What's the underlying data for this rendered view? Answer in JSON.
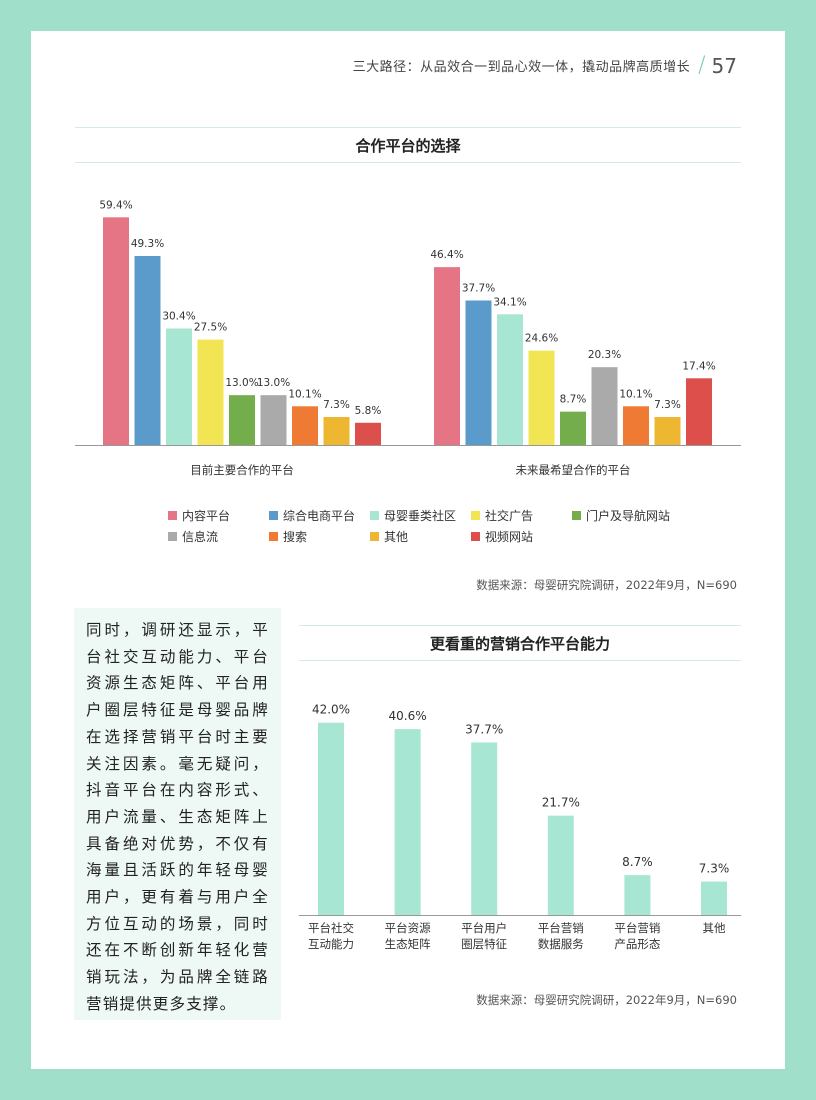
{
  "header": {
    "title": "三大路径：从品效合一到品心效一体，撬动品牌高质增长",
    "page_number": "57"
  },
  "chart1": {
    "title": "合作平台的选择",
    "source": "数据来源：母婴研究院调研，2022年9月，N=690"
  },
  "chart2": {
    "title": "更看重的营销合作平台能力",
    "source": "数据来源：母婴研究院调研，2022年9月，N=690"
  },
  "body_text": "同时，调研还显示，平台社交互动能力、平台资源生态矩阵、平台用户圈层特征是母婴品牌在选择营销平台时主要关注因素。毫无疑问，抖音平台在内容形式、用户流量、生态矩阵上具备绝对优势，不仅有海量且活跃的年轻母婴用户，更有着与用户全方位互动的场景，同时还在不断创新年轻化营销玩法，为品牌全链路营销提供更多支撑。",
  "chart_data": [
    {
      "type": "bar",
      "title": "合作平台的选择",
      "categories": [
        "目前主要合作的平台",
        "未来最希望合作的平台"
      ],
      "series": [
        {
          "name": "内容平台",
          "color": "#e57585",
          "values": [
            59.4,
            46.4
          ]
        },
        {
          "name": "综合电商平台",
          "color": "#5b9bcb",
          "values": [
            49.3,
            37.7
          ]
        },
        {
          "name": "母婴垂类社区",
          "color": "#a6e6d2",
          "values": [
            30.4,
            34.1
          ]
        },
        {
          "name": "社交广告",
          "color": "#f1e554",
          "values": [
            27.5,
            24.6
          ]
        },
        {
          "name": "门户及导航网站",
          "color": "#74ad4c",
          "values": [
            13.0,
            8.7
          ]
        },
        {
          "name": "信息流",
          "color": "#aaaaaa",
          "values": [
            13.0,
            20.3
          ]
        },
        {
          "name": "搜索",
          "color": "#ef7a34",
          "values": [
            10.1,
            10.1
          ]
        },
        {
          "name": "其他",
          "color": "#edb731",
          "values": [
            7.3,
            7.3
          ]
        },
        {
          "name": "视频网站",
          "color": "#dc4f4a",
          "values": [
            5.8,
            17.4
          ]
        }
      ],
      "ylim": [
        0,
        60
      ],
      "value_suffix": "%",
      "legend_position": "bottom"
    },
    {
      "type": "bar",
      "title": "更看重的营销合作平台能力",
      "categories": [
        [
          "平台社交",
          "互动能力"
        ],
        [
          "平台资源",
          "生态矩阵"
        ],
        [
          "平台用户",
          "圈层特征"
        ],
        [
          "平台营销",
          "数据服务"
        ],
        [
          "平台营销",
          "产品形态"
        ],
        [
          "其他"
        ]
      ],
      "values": [
        42.0,
        40.6,
        37.7,
        21.7,
        8.7,
        7.3
      ],
      "color": "#a6e6d2",
      "ylim": [
        0,
        45
      ],
      "value_suffix": "%"
    }
  ]
}
